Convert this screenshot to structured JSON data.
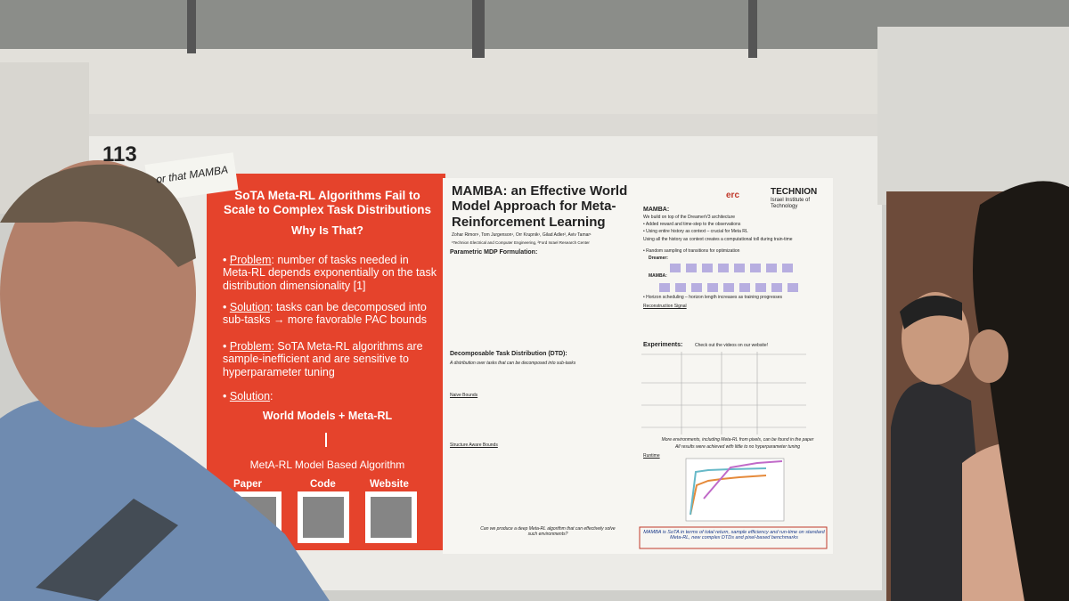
{
  "booth_number": "113",
  "sticky_note": "or that MAMBA",
  "left_panel": {
    "title": "SoTA Meta-RL Algorithms Fail to Scale to Complex Task Distributions",
    "subtitle": "Why Is That?",
    "bullets": [
      {
        "label": "Problem",
        "text": ": number of tasks needed in Meta-RL depends exponentially on the task distribution dimensionality [1]"
      },
      {
        "label": "Solution",
        "text": ": tasks can be decomposed into sub-tasks → more favorable PAC bounds"
      },
      {
        "label": "Problem",
        "text": ": SoTA Meta-RL algorithms are sample-inefficient and are sensitive to hyperparameter tuning"
      },
      {
        "label": "Solution",
        "text": ":"
      }
    ],
    "solution": "World Models + Meta-RL",
    "algorithm": "MetA-RL Model Based Algorithm",
    "qr_labels": [
      "Paper",
      "Code",
      "Website"
    ]
  },
  "poster": {
    "title": "MAMBA: an Effective World Model Approach for Meta-Reinforcement Learning",
    "authors": "Zohar Rimon¹, Tom Jurgenson¹, Orr Krupnik¹, Gilad Adler², Aviv Tamar¹",
    "affiliations": "¹Technion Electrical and Computer Engineering, ²Ford Israel Research Center",
    "logos": {
      "erc": "erc",
      "technion": "TECHNION",
      "technion_sub": "Israel Institute of Technology"
    },
    "sections": {
      "mdp": "Parametric MDP Formulation:",
      "dtd": "Decomposable Task Distribution (DTD):",
      "dtd_def": "A distribution over tasks that can be decomposed into sub-tasks",
      "naive": "Naive Bounds",
      "structure": "Structure Aware Bounds",
      "question": "Can we produce a deep Meta-RL algorithm that can effectively solve such environments?"
    },
    "right": {
      "heading": "MAMBA:",
      "intro": "We build on top of the DreamerV3 architecture",
      "bullets": [
        "Added reward and time-step to the observations",
        "Using entire history as context – crucial for Meta RL"
      ],
      "toll": "Using all the history as context creates a computational toll during train-time",
      "sampling": "Random sampling of transitions for optimization",
      "dreamer_label": "Dreamer:",
      "mamba_label": "MAMBA:",
      "horizon": "Horizon scheduling – horizon length increases as training progresses",
      "reconstruction": "Reconstruction Signal",
      "experiments": "Experiments:",
      "videos": "Check out the videos on our website!",
      "more": "More environments, including Meta-RL from pixels, can be found in the paper",
      "tuning": "All results were achieved with little to no hyperparameter tuning",
      "runtime": "Runtime",
      "conclusion": "MAMBA is SoTA in terms of total return, sample efficiency and run-time on standard Meta-RL, new complex DTDs and pixel-based benchmarks"
    }
  }
}
